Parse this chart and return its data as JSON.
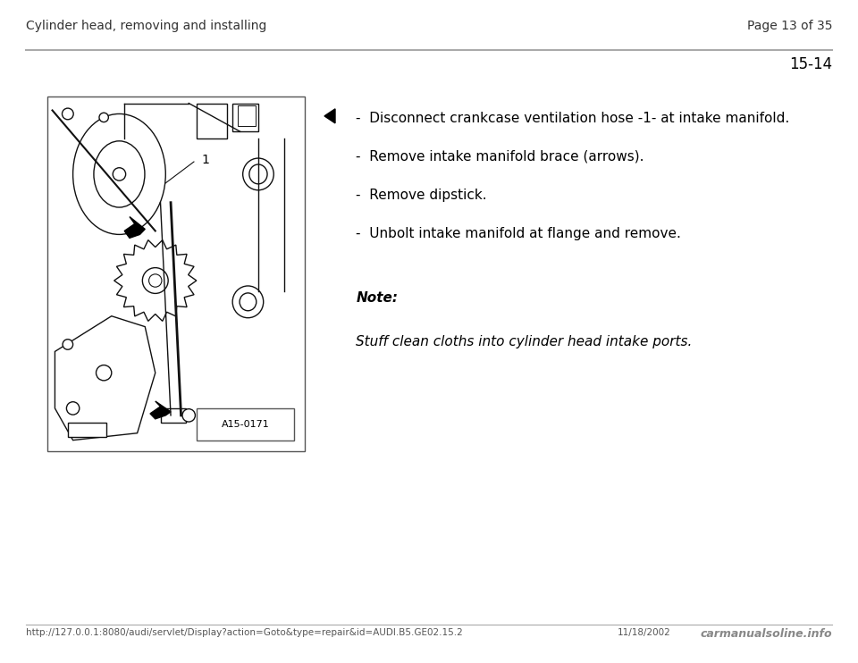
{
  "header_left": "Cylinder head, removing and installing",
  "header_right": "Page 13 of 35",
  "page_number": "15-14",
  "header_line_color": "#aaaaaa",
  "background_color": "#ffffff",
  "text_color": "#000000",
  "bullet_items": [
    "Disconnect crankcase ventilation hose -1- at intake manifold.",
    "Remove intake manifold brace (arrows).",
    "Remove dipstick.",
    "Unbolt intake manifold at flange and remove."
  ],
  "bullet_prefix": "-  ",
  "note_label": "Note:",
  "note_text": "Stuff clean cloths into cylinder head intake ports.",
  "footer_url": "http://127.0.0.1:8080/audi/servlet/Display?action=Goto&type=repair&id=AUDI.B5.GE02.15.2",
  "footer_date": "11/18/2002",
  "footer_watermark": "carmanualsoline.info",
  "image_label": "A15-0171",
  "header_font_size": 10,
  "body_font_size": 11,
  "note_label_font_size": 11,
  "note_text_font_size": 11,
  "page_num_font_size": 12,
  "footer_font_size": 7.5
}
